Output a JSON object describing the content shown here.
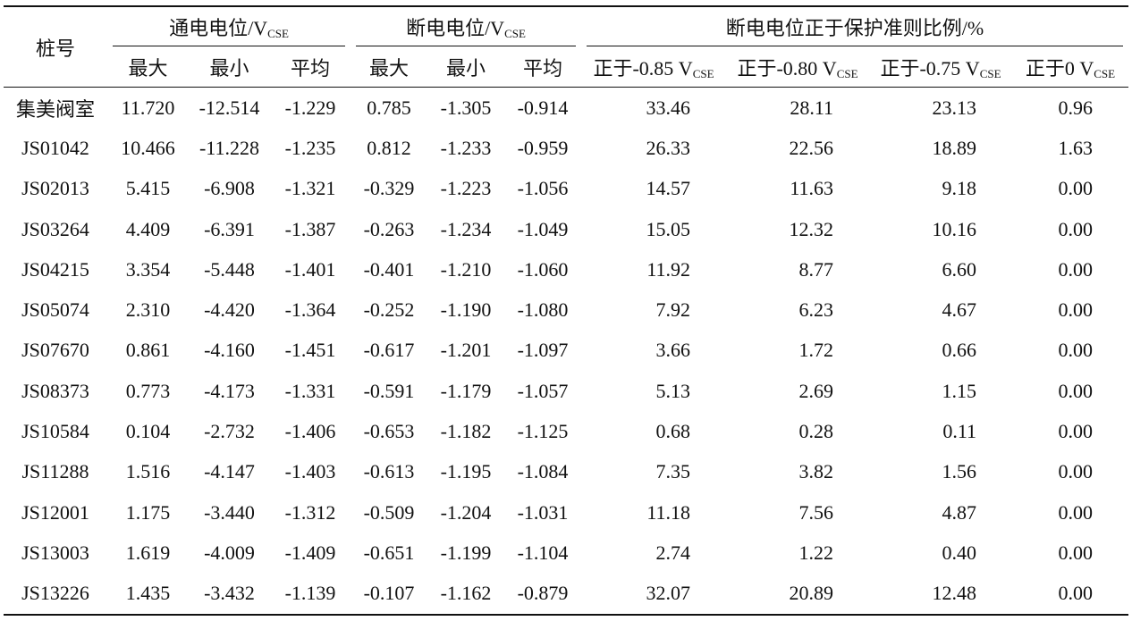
{
  "table": {
    "id_header": "桩号",
    "groups": [
      {
        "label": "通电电位/V",
        "sub": "CSE"
      },
      {
        "label": "断电电位/V",
        "sub": "CSE"
      },
      {
        "label": "断电电位正于保护准则比例/%",
        "sub": ""
      }
    ],
    "subheaders": [
      {
        "label": "最大",
        "sub": ""
      },
      {
        "label": "最小",
        "sub": ""
      },
      {
        "label": "平均",
        "sub": ""
      },
      {
        "label": "最大",
        "sub": ""
      },
      {
        "label": "最小",
        "sub": ""
      },
      {
        "label": "平均",
        "sub": ""
      },
      {
        "label": "正于-0.85 V",
        "sub": "CSE"
      },
      {
        "label": "正于-0.80 V",
        "sub": "CSE"
      },
      {
        "label": "正于-0.75 V",
        "sub": "CSE"
      },
      {
        "label": "正于0 V",
        "sub": "CSE"
      }
    ],
    "rows": [
      [
        "集美阀室",
        "11.720",
        "-12.514",
        "-1.229",
        "0.785",
        "-1.305",
        "-0.914",
        "33.46",
        "28.11",
        "23.13",
        "0.96"
      ],
      [
        "JS01042",
        "10.466",
        "-11.228",
        "-1.235",
        "0.812",
        "-1.233",
        "-0.959",
        "26.33",
        "22.56",
        "18.89",
        "1.63"
      ],
      [
        "JS02013",
        "5.415",
        "-6.908",
        "-1.321",
        "-0.329",
        "-1.223",
        "-1.056",
        "14.57",
        "11.63",
        "9.18",
        "0.00"
      ],
      [
        "JS03264",
        "4.409",
        "-6.391",
        "-1.387",
        "-0.263",
        "-1.234",
        "-1.049",
        "15.05",
        "12.32",
        "10.16",
        "0.00"
      ],
      [
        "JS04215",
        "3.354",
        "-5.448",
        "-1.401",
        "-0.401",
        "-1.210",
        "-1.060",
        "11.92",
        "8.77",
        "6.60",
        "0.00"
      ],
      [
        "JS05074",
        "2.310",
        "-4.420",
        "-1.364",
        "-0.252",
        "-1.190",
        "-1.080",
        "7.92",
        "6.23",
        "4.67",
        "0.00"
      ],
      [
        "JS07670",
        "0.861",
        "-4.160",
        "-1.451",
        "-0.617",
        "-1.201",
        "-1.097",
        "3.66",
        "1.72",
        "0.66",
        "0.00"
      ],
      [
        "JS08373",
        "0.773",
        "-4.173",
        "-1.331",
        "-0.591",
        "-1.179",
        "-1.057",
        "5.13",
        "2.69",
        "1.15",
        "0.00"
      ],
      [
        "JS10584",
        "0.104",
        "-2.732",
        "-1.406",
        "-0.653",
        "-1.182",
        "-1.125",
        "0.68",
        "0.28",
        "0.11",
        "0.00"
      ],
      [
        "JS11288",
        "1.516",
        "-4.147",
        "-1.403",
        "-0.613",
        "-1.195",
        "-1.084",
        "7.35",
        "3.82",
        "1.56",
        "0.00"
      ],
      [
        "JS12001",
        "1.175",
        "-3.440",
        "-1.312",
        "-0.509",
        "-1.204",
        "-1.031",
        "11.18",
        "7.56",
        "4.87",
        "0.00"
      ],
      [
        "JS13003",
        "1.619",
        "-4.009",
        "-1.409",
        "-0.651",
        "-1.199",
        "-1.104",
        "2.74",
        "1.22",
        "0.40",
        "0.00"
      ],
      [
        "JS13226",
        "1.435",
        "-3.432",
        "-1.139",
        "-0.107",
        "-1.162",
        "-0.879",
        "32.07",
        "20.89",
        "12.48",
        "0.00"
      ]
    ]
  }
}
